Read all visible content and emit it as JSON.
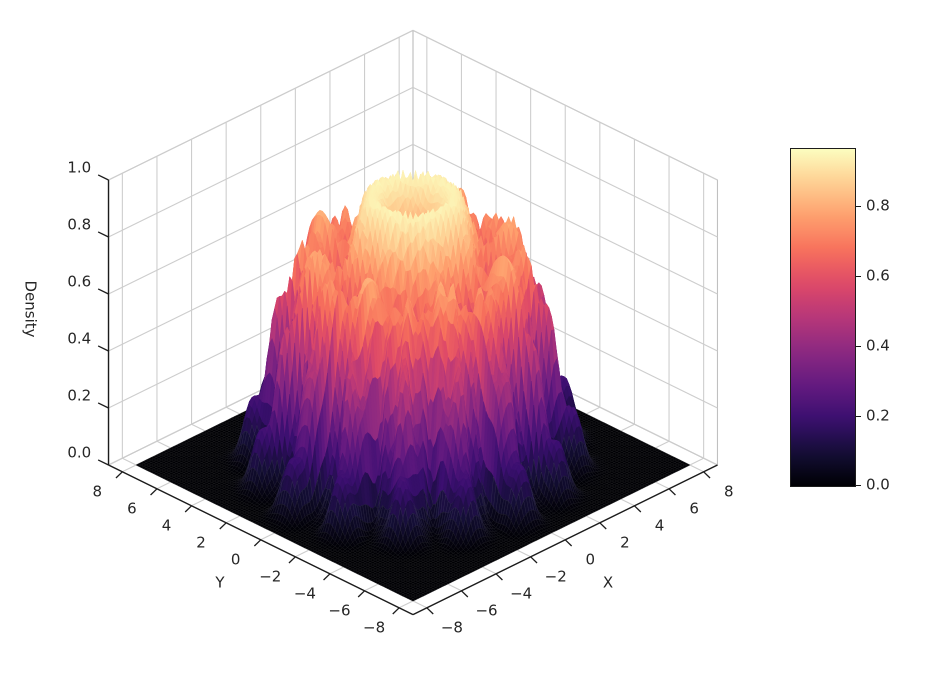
{
  "chart_data": {
    "type": "surface",
    "xlabel": "X",
    "ylabel": "Y",
    "zlabel": "Density",
    "x_range": [
      -8,
      8
    ],
    "y_range": [
      -8,
      8
    ],
    "z_range": [
      0,
      1.0
    ],
    "x_ticks": [
      -8,
      -6,
      -4,
      -2,
      0,
      2,
      4,
      6,
      8
    ],
    "x_tick_labels": [
      "−8",
      "−6",
      "−4",
      "−2",
      "0",
      "2",
      "4",
      "6",
      "8"
    ],
    "y_ticks": [
      -8,
      -6,
      -4,
      -2,
      0,
      2,
      4,
      6,
      8
    ],
    "y_tick_labels": [
      "−8",
      "−6",
      "−4",
      "−2",
      "0",
      "2",
      "4",
      "6",
      "8"
    ],
    "z_ticks": [
      0,
      0.2,
      0.4,
      0.6,
      0.8,
      1.0
    ],
    "z_tick_labels": [
      "0.0",
      "0.2",
      "0.4",
      "0.6",
      "0.8",
      "1.0"
    ],
    "view": {
      "elev_deg": 30,
      "azim_deg": -45,
      "axis_pad": 0.8
    },
    "grid": true,
    "colormap": {
      "name": "magma",
      "stops": [
        [
          0.0,
          "#000004"
        ],
        [
          0.1,
          "#140e36"
        ],
        [
          0.2,
          "#3b0f70"
        ],
        [
          0.3,
          "#641a80"
        ],
        [
          0.4,
          "#8c2981"
        ],
        [
          0.5,
          "#b73779"
        ],
        [
          0.6,
          "#de4968"
        ],
        [
          0.7,
          "#f7705c"
        ],
        [
          0.8,
          "#fe9f6d"
        ],
        [
          0.9,
          "#fecf92"
        ],
        [
          1.0,
          "#fcfdbf"
        ]
      ]
    },
    "colorbar": {
      "vmin": 0,
      "vmax": 0.963,
      "tick_values": [
        0,
        0.2,
        0.4,
        0.6,
        0.8
      ],
      "tick_labels": [
        "0.0",
        "0.2",
        "0.4",
        "0.6",
        "0.8"
      ]
    },
    "surface_model": {
      "description": "Quantum-dot-like circular density plateau: flat disk of height ~0.96 with concentric ring ripples on top, a ring of dips, fine azimuthal spikes on the steep edge wall, and two decaying rings of mounds around the base; zero (black) floor elsewhere.",
      "grid_n": 110,
      "plateau_radius": 5.0,
      "plateau_edge_width": 0.38,
      "edge_ripple_amp": 0.22,
      "edge_ripple_freq": 44,
      "edge_ripple2_amp": 0.15,
      "edge_ripple2_freq": 16,
      "top_base": 0.89,
      "top_ring_amp": 0.11,
      "top_ring_freq": 2.2,
      "top_ring_phase": 2.45,
      "dip_ring_radius": 3.35,
      "dip_ring_width": 0.8,
      "dip_depth": 0.26,
      "dip_lobes": 8,
      "dip_phase": 0.5,
      "fine_depth": 0.15,
      "fine_freq": 44,
      "fine_twist": 1.6,
      "fine_onset_radius": 3.2,
      "outer_ring1_radius": 5.6,
      "outer_ring1_width": 0.48,
      "outer_ring1_height": 0.46,
      "outer_ring2_radius": 6.6,
      "outer_ring2_width": 0.5,
      "outer_ring2_height": 0.2,
      "outer_lobes": 16,
      "outer_phase": 1.0,
      "z_max": 0.963
    },
    "style": {
      "background": "#ffffff",
      "grid_color": "#cdcdcd",
      "pane_edge_color": "#c0c0c0",
      "spine_color": "#1c1c1c",
      "text_color": "#262626"
    }
  }
}
